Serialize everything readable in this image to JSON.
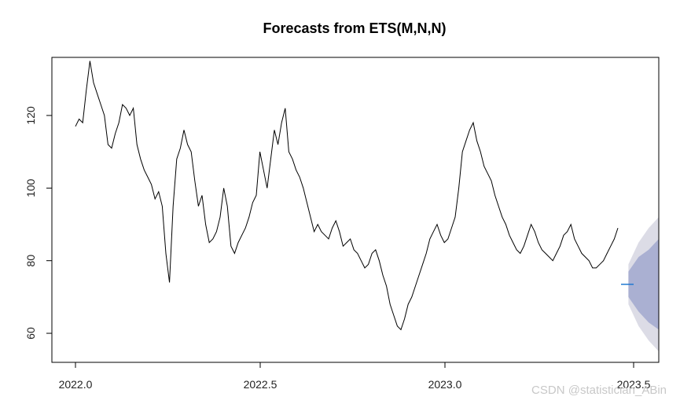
{
  "chart_data": {
    "type": "line",
    "title": "Forecasts from ETS(M,N,N)",
    "xlabel": "",
    "ylabel": "",
    "xlim": [
      1.9667,
      2.5667
    ],
    "ylim": [
      52,
      136
    ],
    "x_ticks": [
      2.0,
      2.2,
      2.4,
      2.6
    ],
    "x_tick_labels": [
      "2022.0",
      "2022.5",
      "2023.0",
      "2023.5"
    ],
    "y_ticks": [
      60,
      80,
      100,
      120
    ],
    "y_tick_labels": [
      "60",
      "80",
      "100",
      "120"
    ],
    "grid": false,
    "series": [
      {
        "role": "observed",
        "color": "#000000",
        "x": [
          2.0,
          2.004,
          2.008,
          2.012,
          2.016,
          2.02,
          2.024,
          2.028,
          2.032,
          2.036,
          2.04,
          2.044,
          2.048,
          2.052,
          2.056,
          2.06,
          2.064,
          2.068,
          2.072,
          2.076,
          2.08,
          2.084,
          2.088,
          2.092,
          2.096,
          2.1,
          2.104,
          2.108,
          2.112,
          2.116,
          2.12,
          2.124,
          2.128,
          2.132,
          2.136,
          2.14,
          2.144,
          2.148,
          2.152,
          2.156,
          2.16,
          2.164,
          2.168,
          2.172,
          2.176,
          2.18,
          2.184,
          2.188,
          2.192,
          2.196,
          2.2,
          2.204,
          2.208,
          2.212,
          2.216,
          2.22,
          2.224,
          2.228,
          2.232,
          2.236,
          2.24,
          2.244,
          2.248,
          2.252,
          2.256,
          2.26,
          2.264,
          2.268,
          2.272,
          2.276,
          2.28,
          2.284,
          2.288,
          2.292,
          2.296,
          2.3,
          2.304,
          2.308,
          2.312,
          2.316,
          2.32,
          2.324,
          2.328,
          2.332,
          2.336,
          2.34,
          2.344,
          2.348,
          2.352,
          2.356,
          2.36,
          2.364,
          2.368,
          2.372,
          2.376,
          2.38,
          2.384,
          2.388,
          2.392,
          2.396,
          2.4,
          2.404,
          2.408,
          2.412,
          2.416,
          2.42,
          2.424,
          2.428,
          2.432,
          2.436,
          2.44,
          2.444,
          2.448,
          2.452,
          2.456,
          2.46,
          2.464,
          2.468,
          2.472,
          2.476,
          2.48,
          2.484,
          2.488,
          2.492,
          2.496,
          2.5,
          2.504,
          2.508,
          2.512,
          2.516,
          2.52,
          2.524,
          2.528,
          2.532,
          2.536,
          2.54,
          2.544,
          2.548,
          2.552,
          2.556,
          2.56,
          2.564,
          2.568,
          2.572,
          2.576,
          2.58,
          2.584,
          2.588,
          2.592,
          2.596,
          2.6
        ],
        "y": [
          117,
          119,
          118,
          127,
          135,
          129,
          126,
          123,
          120,
          112,
          111,
          115,
          118,
          123,
          122,
          120,
          122,
          112,
          108,
          105,
          103,
          101,
          97,
          99,
          95,
          82,
          74,
          95,
          108,
          111,
          116,
          112,
          110,
          102,
          95,
          98,
          90,
          85,
          86,
          88,
          92,
          100,
          95,
          84,
          82,
          85,
          87,
          89,
          92,
          96,
          98,
          110,
          105,
          100,
          108,
          116,
          112,
          118,
          122,
          110,
          108,
          105,
          103,
          100,
          96,
          92,
          88,
          90,
          88,
          87,
          86,
          89,
          91,
          88,
          84,
          85,
          86,
          83,
          82,
          80,
          78,
          79,
          82,
          83,
          80,
          76,
          73,
          68,
          65,
          62,
          61,
          64,
          68,
          70,
          73,
          76,
          79,
          82,
          86,
          88,
          90,
          87,
          85,
          86,
          89,
          92,
          100,
          110,
          113,
          116,
          118,
          113,
          110,
          106,
          104,
          102,
          98,
          95,
          92,
          90,
          87,
          85,
          83,
          82,
          84,
          87,
          90,
          88,
          85,
          83,
          82,
          81,
          80,
          82,
          84,
          87,
          88,
          90,
          86,
          84,
          82,
          81,
          80,
          78,
          78,
          79,
          80,
          82,
          84,
          86,
          89
        ]
      },
      {
        "role": "point_forecast",
        "color": "#1f78d1",
        "x": [
          2.0,
          2.03
        ],
        "y": [
          73.5,
          73.5
        ]
      }
    ],
    "interval_95": {
      "color": "#dcdce6",
      "x": [
        2.0,
        2.01,
        2.02,
        2.03
      ],
      "lower": [
        68,
        62,
        58,
        55
      ],
      "upper": [
        79,
        85,
        89,
        92
      ]
    },
    "interval_80": {
      "color": "#aab0d2",
      "x": [
        2.0,
        2.01,
        2.02,
        2.03
      ],
      "lower": [
        70,
        66,
        63,
        61
      ],
      "upper": [
        77,
        81,
        83,
        86
      ]
    }
  },
  "watermark": "CSDN @statistician_ABin"
}
